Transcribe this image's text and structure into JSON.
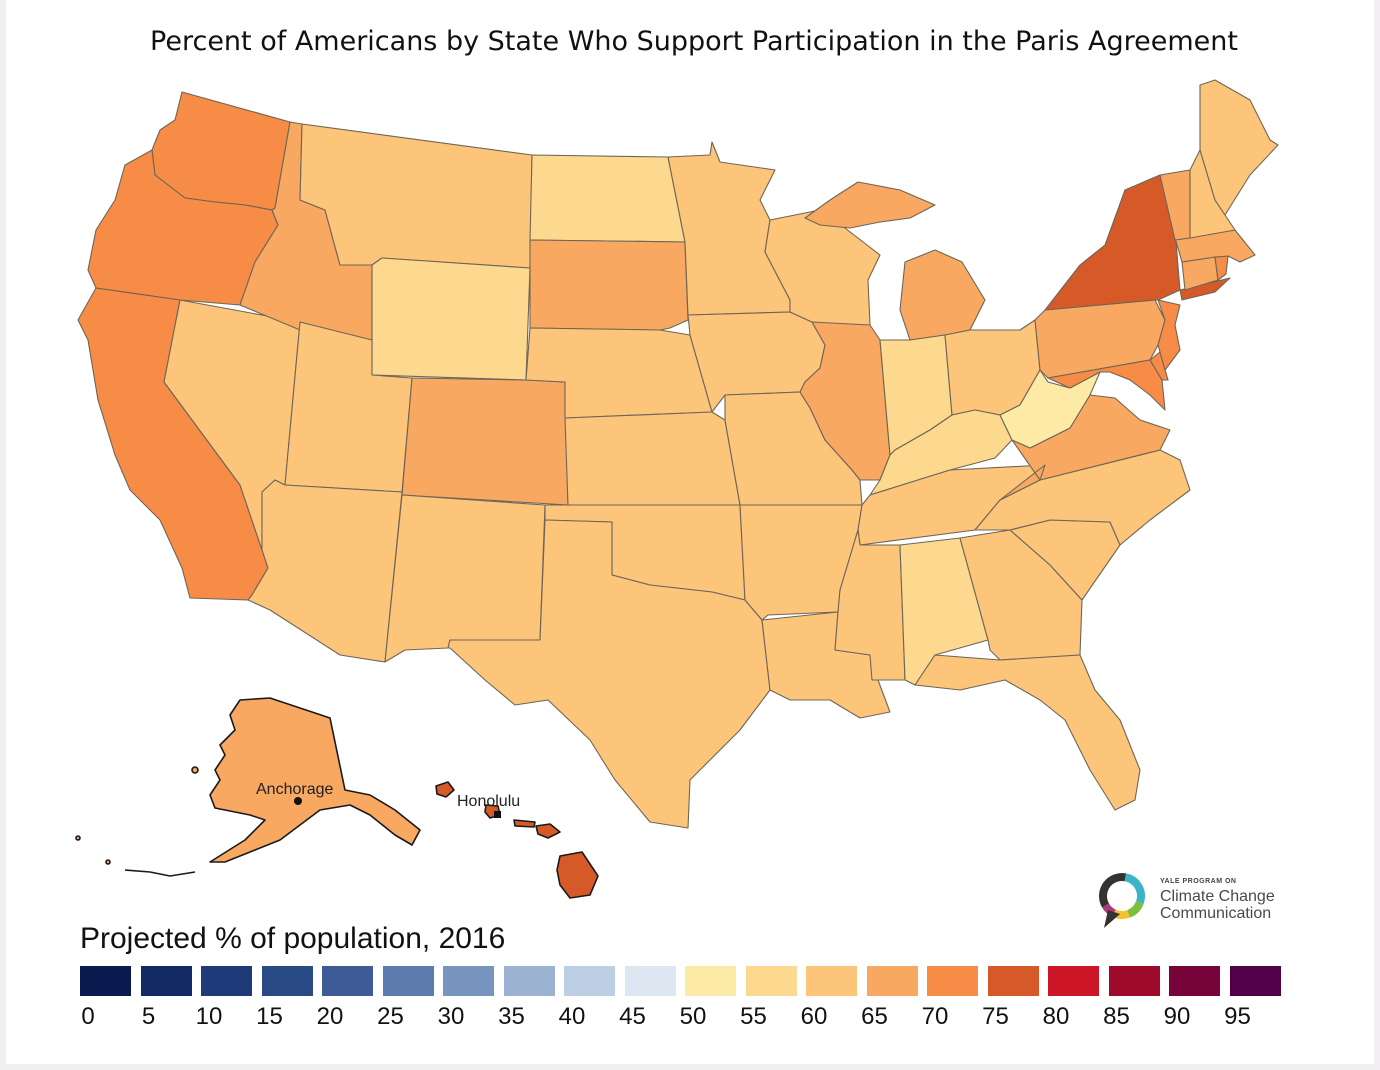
{
  "title": "Percent of Americans by State Who Support Participation in the Paris Agreement",
  "legend": {
    "title": "Projected % of population, 2016",
    "bins": [
      {
        "value": 0,
        "color": "#0b1a4f"
      },
      {
        "value": 5,
        "color": "#142a65"
      },
      {
        "value": 10,
        "color": "#1f3a78"
      },
      {
        "value": 15,
        "color": "#2a4a86"
      },
      {
        "value": 20,
        "color": "#3d5c97"
      },
      {
        "value": 25,
        "color": "#5d7cae"
      },
      {
        "value": 30,
        "color": "#7895c0"
      },
      {
        "value": 35,
        "color": "#9cb2d3"
      },
      {
        "value": 40,
        "color": "#bccfe5"
      },
      {
        "value": 45,
        "color": "#dde7f2"
      },
      {
        "value": 50,
        "color": "#fdeaa5"
      },
      {
        "value": 55,
        "color": "#fcd98e"
      },
      {
        "value": 60,
        "color": "#fcc57a"
      },
      {
        "value": 65,
        "color": "#f8a860"
      },
      {
        "value": 70,
        "color": "#f68c45"
      },
      {
        "value": 75,
        "color": "#d65a28"
      },
      {
        "value": 80,
        "color": "#cc1526"
      },
      {
        "value": 85,
        "color": "#9e0a2c"
      },
      {
        "value": 90,
        "color": "#760438"
      },
      {
        "value": 95,
        "color": "#520049"
      }
    ]
  },
  "cities": {
    "anchorage": "Anchorage",
    "honolulu": "Honolulu"
  },
  "states": {
    "WA": {
      "bin": 70
    },
    "OR": {
      "bin": 70
    },
    "CA": {
      "bin": 70
    },
    "NV": {
      "bin": 60
    },
    "ID": {
      "bin": 65
    },
    "MT": {
      "bin": 60
    },
    "WY": {
      "bin": 55
    },
    "UT": {
      "bin": 60
    },
    "AZ": {
      "bin": 60
    },
    "CO": {
      "bin": 65
    },
    "NM": {
      "bin": 60
    },
    "ND": {
      "bin": 55
    },
    "SD": {
      "bin": 65
    },
    "NE": {
      "bin": 60
    },
    "KS": {
      "bin": 60
    },
    "OK": {
      "bin": 60
    },
    "TX": {
      "bin": 60
    },
    "MN": {
      "bin": 60
    },
    "IA": {
      "bin": 60
    },
    "MO": {
      "bin": 60
    },
    "AR": {
      "bin": 60
    },
    "LA": {
      "bin": 60
    },
    "WI": {
      "bin": 60
    },
    "IL": {
      "bin": 65
    },
    "MI": {
      "bin": 65
    },
    "IN": {
      "bin": 55
    },
    "OH": {
      "bin": 60
    },
    "KY": {
      "bin": 55
    },
    "TN": {
      "bin": 60
    },
    "MS": {
      "bin": 60
    },
    "AL": {
      "bin": 55
    },
    "GA": {
      "bin": 60
    },
    "FL": {
      "bin": 60
    },
    "SC": {
      "bin": 60
    },
    "NC": {
      "bin": 60
    },
    "VA": {
      "bin": 65
    },
    "WV": {
      "bin": 50
    },
    "PA": {
      "bin": 65
    },
    "NY": {
      "bin": 75
    },
    "NJ": {
      "bin": 70
    },
    "DE": {
      "bin": 70
    },
    "MD": {
      "bin": 70
    },
    "CT": {
      "bin": 65
    },
    "RI": {
      "bin": 70
    },
    "MA": {
      "bin": 65
    },
    "VT": {
      "bin": 65
    },
    "NH": {
      "bin": 60
    },
    "ME": {
      "bin": 60
    },
    "AK": {
      "bin": 65
    },
    "HI": {
      "bin": 75
    }
  },
  "logo": {
    "small": "YALE PROGRAM ON",
    "line1": "Climate Change",
    "line2": "Communication",
    "colors": [
      "#3cb4c8",
      "#f2c230",
      "#7bbf3c",
      "#b23a7a",
      "#333333"
    ]
  }
}
